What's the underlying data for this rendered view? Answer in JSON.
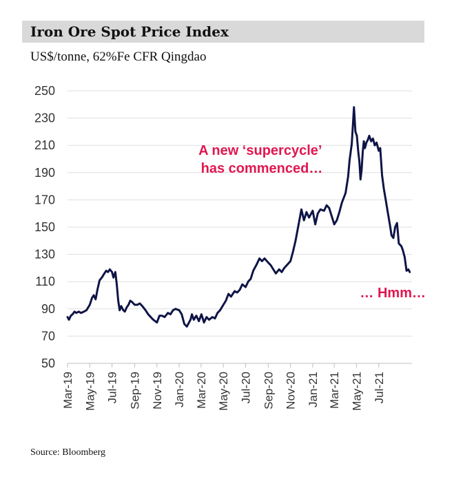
{
  "header": {
    "title": "Iron Ore Spot Price Index",
    "subtitle": "US$/tonne, 62%Fe CFR Qingdao"
  },
  "footer": {
    "source": "Source: Bloomberg"
  },
  "colors": {
    "line": "#0f1446",
    "annotation": "#e0174f",
    "title_bar": "#d9d9d9",
    "grid": "#d9d9d9"
  },
  "chart_data": {
    "type": "line",
    "ylim": [
      50,
      250
    ],
    "yticks": [
      50,
      70,
      90,
      110,
      130,
      150,
      170,
      190,
      210,
      230,
      250
    ],
    "xlim": [
      "2019-03-01",
      "2021-09-30"
    ],
    "xticks": [
      "Mar-19",
      "May-19",
      "Jul-19",
      "Sep-19",
      "Nov-19",
      "Jan-20",
      "Mar-20",
      "May-20",
      "Jul-20",
      "Sep-20",
      "Nov-20",
      "Jan-21",
      "Mar-21",
      "May-21",
      "Jul-21"
    ],
    "grid": "horizontal",
    "legend": "none",
    "annotations": [
      {
        "lines": [
          "A new ‘supercycle’",
          "has commenced…"
        ],
        "anchor": "upper-middle"
      },
      {
        "lines": [
          "… Hmm…"
        ],
        "anchor": "right"
      }
    ],
    "series": [
      {
        "x": [
          "2019-03-01",
          "2019-03-05",
          "2019-03-10",
          "2019-03-15",
          "2019-03-20",
          "2019-03-25",
          "2019-04-01",
          "2019-04-07",
          "2019-04-15",
          "2019-04-22",
          "2019-05-01",
          "2019-05-07",
          "2019-05-12",
          "2019-05-17",
          "2019-05-22",
          "2019-05-28",
          "2019-06-03",
          "2019-06-10",
          "2019-06-15",
          "2019-06-20",
          "2019-06-25",
          "2019-07-01",
          "2019-07-05",
          "2019-07-10",
          "2019-07-14",
          "2019-07-18",
          "2019-07-22",
          "2019-07-26",
          "2019-08-01",
          "2019-08-05",
          "2019-08-10",
          "2019-08-15",
          "2019-08-20",
          "2019-08-25",
          "2019-09-01",
          "2019-09-08",
          "2019-09-15",
          "2019-09-22",
          "2019-10-01",
          "2019-10-08",
          "2019-10-15",
          "2019-10-22",
          "2019-11-01",
          "2019-11-08",
          "2019-11-15",
          "2019-11-22",
          "2019-12-01",
          "2019-12-08",
          "2019-12-15",
          "2019-12-22",
          "2020-01-01",
          "2020-01-08",
          "2020-01-15",
          "2020-01-22",
          "2020-02-01",
          "2020-02-05",
          "2020-02-10",
          "2020-02-17",
          "2020-02-24",
          "2020-03-02",
          "2020-03-09",
          "2020-03-16",
          "2020-03-23",
          "2020-04-01",
          "2020-04-08",
          "2020-04-15",
          "2020-04-22",
          "2020-05-01",
          "2020-05-08",
          "2020-05-15",
          "2020-05-22",
          "2020-06-01",
          "2020-06-08",
          "2020-06-15",
          "2020-06-22",
          "2020-07-01",
          "2020-07-08",
          "2020-07-15",
          "2020-07-22",
          "2020-08-01",
          "2020-08-08",
          "2020-08-15",
          "2020-08-22",
          "2020-09-01",
          "2020-09-08",
          "2020-09-15",
          "2020-09-22",
          "2020-10-01",
          "2020-10-08",
          "2020-10-15",
          "2020-10-22",
          "2020-11-01",
          "2020-11-08",
          "2020-11-15",
          "2020-11-22",
          "2020-12-01",
          "2020-12-08",
          "2020-12-15",
          "2020-12-22",
          "2021-01-01",
          "2021-01-08",
          "2021-01-15",
          "2021-01-22",
          "2021-02-01",
          "2021-02-08",
          "2021-02-15",
          "2021-02-22",
          "2021-03-01",
          "2021-03-08",
          "2021-03-15",
          "2021-03-22",
          "2021-04-01",
          "2021-04-08",
          "2021-04-12",
          "2021-04-18",
          "2021-04-24",
          "2021-04-28",
          "2021-05-02",
          "2021-05-06",
          "2021-05-09",
          "2021-05-12",
          "2021-05-15",
          "2021-05-18",
          "2021-05-21",
          "2021-05-24",
          "2021-05-28",
          "2021-06-01",
          "2021-06-05",
          "2021-06-10",
          "2021-06-15",
          "2021-06-20",
          "2021-06-25",
          "2021-07-01",
          "2021-07-05",
          "2021-07-10",
          "2021-07-15",
          "2021-07-20",
          "2021-07-25",
          "2021-08-01",
          "2021-08-05",
          "2021-08-10",
          "2021-08-15",
          "2021-08-20",
          "2021-08-25",
          "2021-09-01",
          "2021-09-05",
          "2021-09-10",
          "2021-09-15",
          "2021-09-20",
          "2021-09-24"
        ],
        "values": [
          84,
          82,
          85,
          86,
          88,
          87,
          88,
          87,
          88,
          89,
          93,
          98,
          100,
          97,
          104,
          111,
          113,
          116,
          118,
          117,
          119,
          117,
          113,
          117,
          108,
          96,
          89,
          92,
          89,
          88,
          91,
          93,
          96,
          95,
          93,
          93,
          94,
          92,
          89,
          86,
          84,
          82,
          80,
          85,
          85,
          84,
          87,
          86,
          89,
          90,
          89,
          86,
          79,
          77,
          82,
          86,
          82,
          85,
          81,
          86,
          80,
          84,
          82,
          84,
          83,
          87,
          89,
          93,
          96,
          101,
          99,
          103,
          102,
          104,
          108,
          106,
          110,
          112,
          118,
          123,
          127,
          125,
          127,
          124,
          122,
          119,
          116,
          119,
          117,
          120,
          122,
          125,
          132,
          140,
          150,
          163,
          155,
          161,
          157,
          162,
          152,
          160,
          163,
          162,
          166,
          164,
          158,
          152,
          155,
          161,
          168,
          175,
          187,
          199,
          211,
          238,
          220,
          217,
          205,
          198,
          185,
          192,
          205,
          213,
          208,
          212,
          214,
          217,
          213,
          215,
          210,
          212,
          206,
          208,
          188,
          178,
          170,
          162,
          151,
          144,
          142,
          150,
          153,
          138,
          136,
          133,
          128,
          118,
          119,
          117
        ]
      }
    ]
  }
}
